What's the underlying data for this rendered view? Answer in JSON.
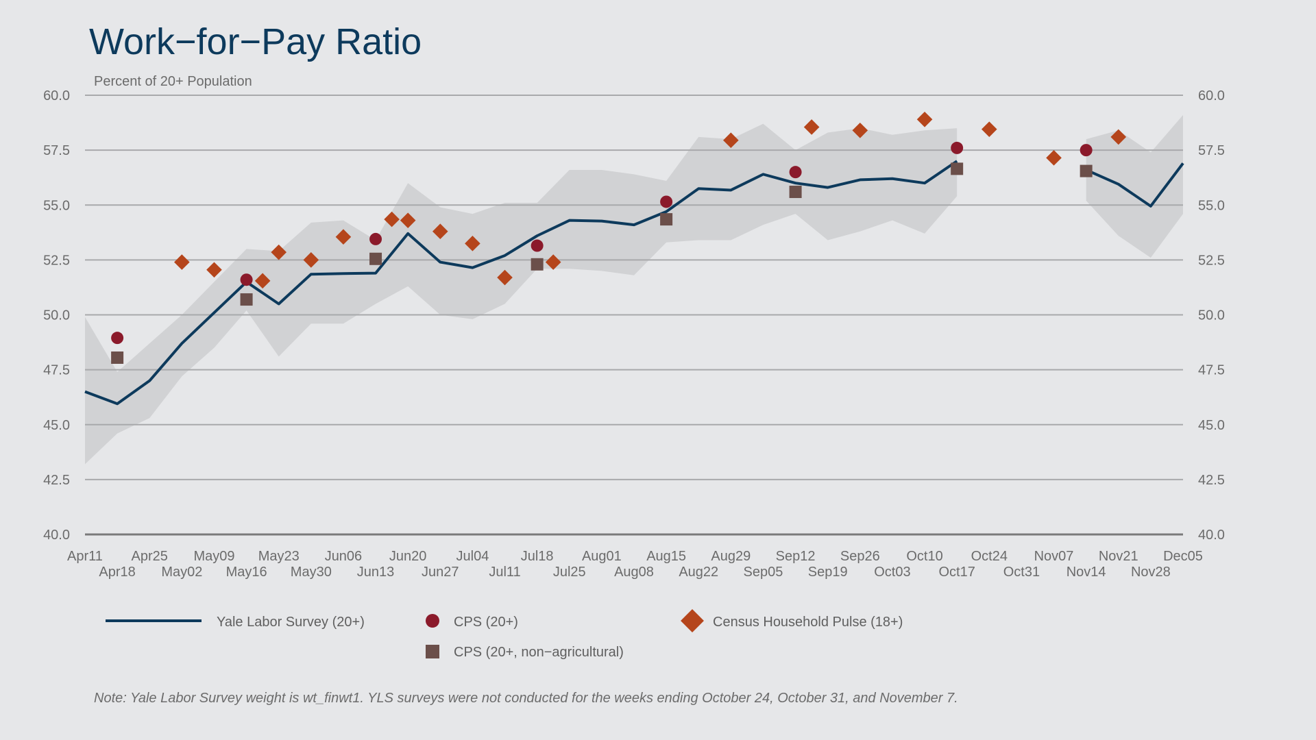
{
  "chart_title": "Work−for−Pay Ratio",
  "chart_data": {
    "type": "line",
    "title": "Work−for−Pay Ratio",
    "subtitle": "Percent of 20+ Population",
    "ylabel": "Percent of 20+ Population",
    "ylim": [
      40,
      60
    ],
    "yticks": [
      "40.0",
      "42.5",
      "45.0",
      "47.5",
      "50.0",
      "52.5",
      "55.0",
      "57.5",
      "60.0"
    ],
    "ytick_values": [
      40,
      42.5,
      45,
      47.5,
      50,
      52.5,
      55,
      57.5,
      60
    ],
    "x_ticks": [
      "Apr11",
      "Apr18",
      "Apr25",
      "May02",
      "May09",
      "May16",
      "May23",
      "May30",
      "Jun06",
      "Jun13",
      "Jun20",
      "Jun27",
      "Jul04",
      "Jul11",
      "Jul18",
      "Jul25",
      "Aug01",
      "Aug08",
      "Aug15",
      "Aug22",
      "Aug29",
      "Sep05",
      "Sep12",
      "Sep19",
      "Sep26",
      "Oct03",
      "Oct10",
      "Oct17",
      "Oct24",
      "Oct31",
      "Nov07",
      "Nov14",
      "Nov21",
      "Nov28",
      "Dec05"
    ],
    "grid": true,
    "legend_position": "bottom",
    "series": [
      {
        "name": "Yale Labor Survey (20+)",
        "kind": "line",
        "color": "#0d3a5c",
        "segments": [
          [
            [
              "Apr11",
              46.5
            ],
            [
              "Apr18",
              45.95
            ],
            [
              "Apr25",
              47.0
            ],
            [
              "May02",
              48.7
            ],
            [
              "May09",
              50.1
            ],
            [
              "May16",
              51.5
            ],
            [
              "May23",
              50.5
            ],
            [
              "May30",
              51.85
            ],
            [
              "Jun06",
              51.88
            ],
            [
              "Jun13",
              51.9
            ],
            [
              "Jun20",
              53.7
            ],
            [
              "Jun27",
              52.4
            ],
            [
              "Jul04",
              52.15
            ],
            [
              "Jul11",
              52.7
            ],
            [
              "Jul18",
              53.6
            ],
            [
              "Jul25",
              54.3
            ],
            [
              "Aug01",
              54.27
            ],
            [
              "Aug08",
              54.1
            ],
            [
              "Aug15",
              54.7
            ],
            [
              "Aug22",
              55.75
            ],
            [
              "Aug29",
              55.68
            ],
            [
              "Sep05",
              56.4
            ],
            [
              "Sep12",
              56.0
            ],
            [
              "Sep19",
              55.8
            ],
            [
              "Sep26",
              56.15
            ],
            [
              "Oct03",
              56.2
            ],
            [
              "Oct10",
              56.0
            ],
            [
              "Oct17",
              57.0
            ]
          ],
          [
            [
              "Nov14",
              56.6
            ],
            [
              "Nov21",
              55.95
            ],
            [
              "Nov28",
              54.95
            ],
            [
              "Dec05",
              56.9
            ]
          ]
        ]
      },
      {
        "name": "CPS (20+)",
        "kind": "circle",
        "color": "#8b1a2b",
        "points": [
          [
            "Apr18",
            48.95
          ],
          [
            "May16",
            51.6
          ],
          [
            "Jun13",
            53.45
          ],
          [
            "Jul18",
            53.15
          ],
          [
            "Aug15",
            55.15
          ],
          [
            "Sep12",
            56.5
          ],
          [
            "Oct17",
            57.6
          ],
          [
            "Nov14",
            57.5
          ]
        ]
      },
      {
        "name": "Census Household Pulse (18+)",
        "kind": "diamond",
        "color": "#b5451b",
        "points": [
          [
            "May02",
            52.4
          ],
          [
            "May09",
            52.05
          ],
          [
            "May16.5",
            51.55
          ],
          [
            "May23",
            52.85
          ],
          [
            "May30",
            52.5
          ],
          [
            "Jun06",
            53.55
          ],
          [
            "Jun13.5",
            54.35
          ],
          [
            "Jun20",
            54.3
          ],
          [
            "Jun27",
            53.8
          ],
          [
            "Jul04",
            53.25
          ],
          [
            "Jul11",
            51.7
          ],
          [
            "Jul18.5",
            52.4
          ],
          [
            "Aug29",
            57.95
          ],
          [
            "Sep12.5",
            58.55
          ],
          [
            "Sep26",
            58.4
          ],
          [
            "Oct10",
            58.9
          ],
          [
            "Oct24",
            58.45
          ],
          [
            "Nov07",
            57.15
          ],
          [
            "Nov21",
            58.1
          ]
        ]
      },
      {
        "name": "CPS (20+, non−agricultural)",
        "kind": "square",
        "color": "#6b4f4a",
        "points": [
          [
            "Apr18",
            48.05
          ],
          [
            "May16",
            50.7
          ],
          [
            "Jun13",
            52.55
          ],
          [
            "Jul18",
            52.3
          ],
          [
            "Aug15",
            54.35
          ],
          [
            "Sep12",
            55.6
          ],
          [
            "Oct17",
            56.65
          ],
          [
            "Nov14",
            56.55
          ]
        ]
      }
    ],
    "confidence_band": {
      "name": "Yale Labor Survey confidence interval",
      "color": "#d1d2d4",
      "segments": [
        {
          "x": [
            "Apr11",
            "Apr18",
            "Apr25",
            "May02",
            "May09",
            "May16",
            "May23",
            "May30",
            "Jun06",
            "Jun13",
            "Jun20",
            "Jun27",
            "Jul04",
            "Jul11",
            "Jul18",
            "Jul25",
            "Aug01",
            "Aug08",
            "Aug15",
            "Aug22",
            "Aug29",
            "Sep05",
            "Sep12",
            "Sep19",
            "Sep26",
            "Oct03",
            "Oct10",
            "Oct17"
          ],
          "upper": [
            49.9,
            47.4,
            48.7,
            50.0,
            51.5,
            53.0,
            52.9,
            54.2,
            54.3,
            53.4,
            56.0,
            54.9,
            54.6,
            55.1,
            55.1,
            56.6,
            56.6,
            56.4,
            56.1,
            58.1,
            58.0,
            58.7,
            57.5,
            58.3,
            58.5,
            58.2,
            58.4,
            58.5
          ],
          "lower": [
            43.2,
            44.6,
            45.3,
            47.2,
            48.5,
            50.2,
            48.1,
            49.6,
            49.6,
            50.5,
            51.3,
            50.0,
            49.8,
            50.5,
            52.1,
            52.1,
            52.0,
            51.8,
            53.3,
            53.4,
            53.4,
            54.1,
            54.6,
            53.4,
            53.8,
            54.3,
            53.7,
            55.4
          ]
        },
        {
          "x": [
            "Nov14",
            "Nov21",
            "Nov28",
            "Dec05"
          ],
          "upper": [
            58.0,
            58.4,
            57.4,
            59.1
          ],
          "lower": [
            55.2,
            53.6,
            52.6,
            54.6
          ]
        }
      ]
    }
  },
  "legend": {
    "line_label": "Yale Labor Survey (20+)",
    "cps_label": "CPS (20+)",
    "pulse_label": "Census Household Pulse (18+)",
    "cps_nonag_label": "CPS (20+, non−agricultural)"
  },
  "note": "Note: Yale Labor Survey weight is wt_finwt1. YLS surveys were not conducted for the weeks ending October 24, October 31, and November 7."
}
